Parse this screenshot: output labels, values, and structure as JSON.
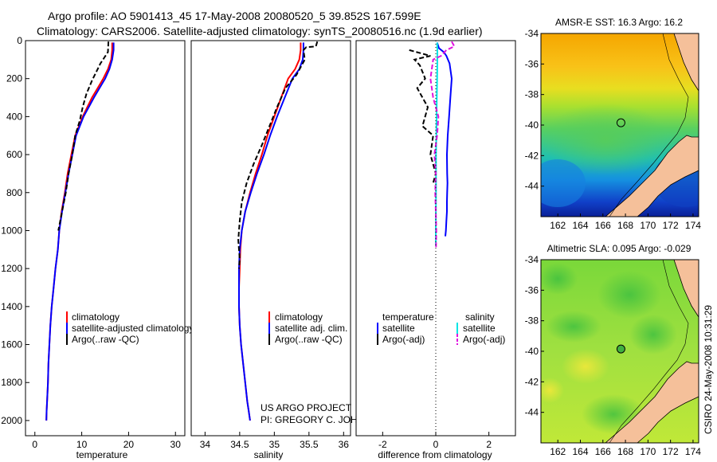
{
  "header": {
    "title_line1": "Argo profile: AO 5901413_45 17-May-2008 20080520_5 39.852S 167.599E",
    "title_line2": "Climatology: CARS2006. Satellite-adjusted climatology: synTS_20080516.nc (1.9d earlier)"
  },
  "colors": {
    "climatology": "#ff0000",
    "satellite": "#0000ff",
    "argo": "#000000",
    "satellite_salinity": "#00e5e5",
    "argo_salinity": "#e010e0",
    "land": "#f5c09a"
  },
  "chart_data": [
    {
      "id": "temperature",
      "type": "line",
      "xlabel": "temperature",
      "ylabel": "",
      "xlim": [
        -2,
        32
      ],
      "ylim": [
        2080,
        0
      ],
      "xticks": [
        0,
        10,
        20,
        30
      ],
      "yticks": [
        0,
        200,
        400,
        600,
        800,
        1000,
        1200,
        1400,
        1600,
        1800,
        2000
      ],
      "legend": [
        "climatology",
        "satellite-adjusted climatology",
        "Argo(..raw -QC)"
      ],
      "series": [
        {
          "name": "climatology",
          "color": "#ff0000",
          "dash": "",
          "x": [
            16.5,
            16.5,
            16.3,
            15.6,
            14.6,
            13.4,
            12.2,
            11.2,
            10.2,
            9.4,
            8.6,
            7.8,
            7.0,
            6.4,
            5.7,
            5.2,
            4.9,
            4.4,
            4.0,
            3.6,
            3.3,
            3.1,
            2.9,
            2.8,
            2.6,
            2.5,
            2.45
          ],
          "y": [
            10,
            50,
            100,
            150,
            200,
            250,
            300,
            350,
            400,
            450,
            500,
            600,
            700,
            800,
            900,
            1000,
            1100,
            1200,
            1300,
            1400,
            1500,
            1600,
            1700,
            1800,
            1900,
            1950,
            2000
          ]
        },
        {
          "name": "satellite-adjusted climatology",
          "color": "#0000ff",
          "dash": "",
          "x": [
            16.8,
            16.8,
            16.5,
            15.9,
            15.0,
            13.8,
            12.6,
            11.5,
            10.4,
            9.6,
            8.8,
            8.0,
            7.2,
            6.5,
            5.8,
            5.2,
            4.9,
            4.4,
            4.0,
            3.6,
            3.3,
            3.1,
            2.9,
            2.8,
            2.6,
            2.5,
            2.45
          ],
          "y": [
            10,
            50,
            100,
            150,
            200,
            250,
            300,
            350,
            400,
            450,
            500,
            600,
            700,
            800,
            900,
            1000,
            1100,
            1200,
            1300,
            1400,
            1500,
            1600,
            1700,
            1800,
            1900,
            1950,
            2000
          ]
        },
        {
          "name": "Argo(..raw -QC)",
          "color": "#000000",
          "dash": "6,3",
          "x": [
            15.7,
            15.6,
            14.8,
            14.0,
            13.2,
            12.2,
            11.0,
            10.2,
            9.6,
            8.6,
            8.0,
            7.2,
            6.6,
            5.8,
            5.0
          ],
          "y": [
            5,
            60,
            90,
            120,
            160,
            210,
            280,
            350,
            420,
            500,
            600,
            700,
            800,
            900,
            1000
          ]
        }
      ]
    },
    {
      "id": "salinity",
      "type": "line",
      "xlabel": "salinity",
      "ylabel": "",
      "xlim": [
        33.8,
        36.1
      ],
      "ylim": [
        2080,
        0
      ],
      "xticks": [
        34,
        34.5,
        35,
        35.5,
        36
      ],
      "yticks": [],
      "legend": [
        "climatology",
        "satellite adj. clim.",
        "Argo(..raw -QC)"
      ],
      "annotation": [
        "US ARGO PROJECT",
        "PI: GREGORY C. JOHNSON"
      ],
      "series": [
        {
          "name": "climatology",
          "color": "#ff0000",
          "dash": "",
          "x": [
            35.38,
            35.38,
            35.36,
            35.3,
            35.2,
            35.1,
            35.0,
            34.9,
            34.82,
            34.73,
            34.65,
            34.58,
            34.53,
            34.51,
            34.5,
            34.49,
            34.49,
            34.5,
            34.52,
            34.55,
            34.58,
            34.61,
            34.63,
            34.65
          ],
          "y": [
            10,
            50,
            100,
            150,
            200,
            300,
            400,
            500,
            600,
            700,
            800,
            900,
            1000,
            1100,
            1200,
            1300,
            1400,
            1500,
            1600,
            1700,
            1800,
            1900,
            1950,
            2000
          ]
        },
        {
          "name": "satellite adj. clim.",
          "color": "#0000ff",
          "dash": "",
          "x": [
            35.42,
            35.42,
            35.41,
            35.36,
            35.26,
            35.15,
            35.04,
            34.94,
            34.85,
            34.75,
            34.66,
            34.58,
            34.53,
            34.5,
            34.49,
            34.49,
            34.49,
            34.5,
            34.52,
            34.55,
            34.58,
            34.61,
            34.63,
            34.65
          ],
          "y": [
            10,
            50,
            100,
            150,
            200,
            300,
            400,
            500,
            600,
            700,
            800,
            900,
            1000,
            1100,
            1200,
            1300,
            1400,
            1500,
            1600,
            1700,
            1800,
            1900,
            1950,
            2000
          ]
        },
        {
          "name": "Argo(..raw -QC)",
          "color": "#000000",
          "dash": "6,3",
          "x": [
            35.62,
            35.6,
            35.46,
            35.42,
            35.44,
            35.32,
            35.16,
            35.04,
            34.93,
            34.82,
            34.7,
            34.6,
            34.53,
            34.5,
            34.48,
            34.5,
            34.49
          ],
          "y": [
            5,
            30,
            35,
            50,
            100,
            180,
            250,
            350,
            450,
            550,
            650,
            750,
            850,
            950,
            1050,
            1150,
            1200
          ]
        }
      ]
    },
    {
      "id": "difference",
      "type": "line",
      "xlabel": "difference from climatology",
      "ylabel": "",
      "xlim": [
        -3,
        3
      ],
      "ylim": [
        2080,
        0
      ],
      "xticks": [
        -2,
        0,
        2
      ],
      "yticks": [],
      "legend_headers": [
        "temperature",
        "salinity"
      ],
      "legend": [
        "satellite",
        "Argo(-adj)",
        "satellite",
        "Argo(-adj)"
      ],
      "series": [
        {
          "name": "temperature satellite",
          "color": "#0000ff",
          "dash": "",
          "x": [
            0.05,
            0.12,
            0.3,
            0.4,
            0.52,
            0.6,
            0.55,
            0.5,
            0.45,
            0.42,
            0.43,
            0.44,
            0.43,
            0.42,
            0.42,
            0.4,
            0.38,
            0.36
          ],
          "y": [
            10,
            40,
            60,
            80,
            120,
            200,
            300,
            400,
            500,
            600,
            700,
            750,
            800,
            850,
            900,
            950,
            1000,
            1030
          ]
        },
        {
          "name": "temperature Argo(-adj)",
          "color": "#000000",
          "dash": "6,3",
          "x": [
            -1.0,
            -0.2,
            -0.8,
            -0.6,
            -0.4,
            -0.7,
            -0.3,
            -0.5,
            -0.1,
            -0.2,
            0.0,
            -0.1
          ],
          "y": [
            50,
            80,
            100,
            130,
            200,
            250,
            350,
            450,
            500,
            600,
            700,
            750
          ]
        },
        {
          "name": "salinity satellite",
          "color": "#00e5e5",
          "dash": "",
          "x": [
            0.05,
            0.06,
            0.06,
            0.05,
            0.04,
            0.03,
            0.02,
            0.01,
            0.01,
            0.0,
            0.0
          ],
          "y": [
            10,
            50,
            100,
            200,
            300,
            400,
            500,
            600,
            800,
            1000,
            1080
          ]
        },
        {
          "name": "salinity Argo(-adj)",
          "color": "#e010e0",
          "dash": "6,3",
          "x": [
            0.6,
            0.7,
            0.4,
            0.2,
            -0.1,
            -0.2,
            -0.1,
            0.1,
            0.05,
            -0.05,
            0.0,
            -0.02,
            0.0,
            0.02,
            0.01
          ],
          "y": [
            5,
            30,
            50,
            80,
            100,
            200,
            300,
            400,
            500,
            600,
            700,
            800,
            900,
            1000,
            1090
          ]
        },
        {
          "name": "zero line",
          "color": "#000000",
          "dash": "1,3",
          "x": [
            0,
            0
          ],
          "y": [
            0,
            2080
          ]
        }
      ]
    }
  ],
  "maps": [
    {
      "id": "sst",
      "title": "AMSR-E SST: 16.3 Argo: 16.2",
      "xticks": [
        "162",
        "164",
        "166",
        "168",
        "170",
        "172",
        "174"
      ],
      "yticks": [
        "-34",
        "-36",
        "-38",
        "-40",
        "-42",
        "-44"
      ],
      "xlim": [
        160.5,
        174.5
      ],
      "ylim": [
        -46,
        -34
      ],
      "marker": {
        "lon": 167.6,
        "lat": -39.85,
        "fill": "none"
      }
    },
    {
      "id": "sla",
      "title": "Altimetric SLA: 0.095 Argo: -0.029",
      "xticks": [
        "162",
        "164",
        "166",
        "168",
        "170",
        "172",
        "174"
      ],
      "yticks": [
        "-34",
        "-36",
        "-38",
        "-40",
        "-42",
        "-44"
      ],
      "xlim": [
        160.5,
        174.5
      ],
      "ylim": [
        -46,
        -34
      ],
      "marker": {
        "lon": 167.6,
        "lat": -39.85,
        "fill": "#40b040"
      }
    }
  ],
  "footer": {
    "stamp": "CSIRO 24-May-2008 10:31:29"
  }
}
